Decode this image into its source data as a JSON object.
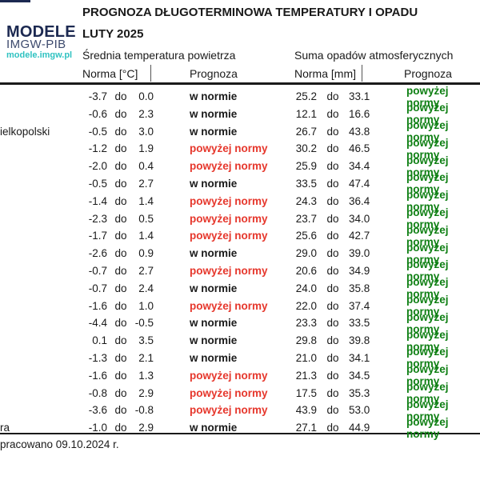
{
  "logo": {
    "name": "MODELE",
    "org": "IMGW-PIB",
    "url": "modele.imgw.pl"
  },
  "header": {
    "title": "PROGNOZA DŁUGOTERMINOWA TEMPERATURY I OPADU",
    "subtitle": "LUTY 2025"
  },
  "columns": {
    "temp_section": "Średnia temperatura powietrza",
    "precip_section": "Suma opadów atmosferycznych",
    "temp_norm": "Norma [°C]",
    "temp_forecast": "Prognoza",
    "precip_norm": "Norma [mm]",
    "precip_forecast": "Prognoza"
  },
  "separator_word": "do",
  "footer": "pracowano 09.10.2024 r.",
  "colors": {
    "above_norm_temp": "#e6372c",
    "above_norm_precip": "#0e7f13",
    "in_norm": "#1a1a1a",
    "logo_navy": "#1c2951",
    "logo_teal": "#2fc2c1"
  },
  "rows": [
    {
      "city": "",
      "t_min": "-3.7",
      "t_max": "0.0",
      "t_forecast": "w normie",
      "t_above": false,
      "p_min": "25.2",
      "p_max": "33.1",
      "p_forecast": "powyżej normy",
      "p_above": true
    },
    {
      "city": "",
      "t_min": "-0.6",
      "t_max": "2.3",
      "t_forecast": "w normie",
      "t_above": false,
      "p_min": "12.1",
      "p_max": "16.6",
      "p_forecast": "powyżej normy",
      "p_above": true
    },
    {
      "city": "ielkopolski",
      "t_min": "-0.5",
      "t_max": "3.0",
      "t_forecast": "w normie",
      "t_above": false,
      "p_min": "26.7",
      "p_max": "43.8",
      "p_forecast": "powyżej normy",
      "p_above": true
    },
    {
      "city": "",
      "t_min": "-1.2",
      "t_max": "1.9",
      "t_forecast": "powyżej normy",
      "t_above": true,
      "p_min": "30.2",
      "p_max": "46.5",
      "p_forecast": "powyżej normy",
      "p_above": true
    },
    {
      "city": "",
      "t_min": "-2.0",
      "t_max": "0.4",
      "t_forecast": "powyżej normy",
      "t_above": true,
      "p_min": "25.9",
      "p_max": "34.4",
      "p_forecast": "powyżej normy",
      "p_above": true
    },
    {
      "city": "",
      "t_min": "-0.5",
      "t_max": "2.7",
      "t_forecast": "w normie",
      "t_above": false,
      "p_min": "33.5",
      "p_max": "47.4",
      "p_forecast": "powyżej normy",
      "p_above": true
    },
    {
      "city": "",
      "t_min": "-1.4",
      "t_max": "1.4",
      "t_forecast": "powyżej normy",
      "t_above": true,
      "p_min": "24.3",
      "p_max": "36.4",
      "p_forecast": "powyżej normy",
      "p_above": true
    },
    {
      "city": "",
      "t_min": "-2.3",
      "t_max": "0.5",
      "t_forecast": "powyżej normy",
      "t_above": true,
      "p_min": "23.7",
      "p_max": "34.0",
      "p_forecast": "powyżej normy",
      "p_above": true
    },
    {
      "city": "",
      "t_min": "-1.7",
      "t_max": "1.4",
      "t_forecast": "powyżej normy",
      "t_above": true,
      "p_min": "25.6",
      "p_max": "42.7",
      "p_forecast": "powyżej normy",
      "p_above": true
    },
    {
      "city": "",
      "t_min": "-2.6",
      "t_max": "0.9",
      "t_forecast": "w normie",
      "t_above": false,
      "p_min": "29.0",
      "p_max": "39.0",
      "p_forecast": "powyżej normy",
      "p_above": true
    },
    {
      "city": "",
      "t_min": "-0.7",
      "t_max": "2.7",
      "t_forecast": "powyżej normy",
      "t_above": true,
      "p_min": "20.6",
      "p_max": "34.9",
      "p_forecast": "powyżej normy",
      "p_above": true
    },
    {
      "city": "",
      "t_min": "-0.7",
      "t_max": "2.4",
      "t_forecast": "w normie",
      "t_above": false,
      "p_min": "24.0",
      "p_max": "35.8",
      "p_forecast": "powyżej normy",
      "p_above": true
    },
    {
      "city": "",
      "t_min": "-1.6",
      "t_max": "1.0",
      "t_forecast": "powyżej normy",
      "t_above": true,
      "p_min": "22.0",
      "p_max": "37.4",
      "p_forecast": "powyżej normy",
      "p_above": true
    },
    {
      "city": "",
      "t_min": "-4.4",
      "t_max": "-0.5",
      "t_forecast": "w normie",
      "t_above": false,
      "p_min": "23.3",
      "p_max": "33.5",
      "p_forecast": "powyżej normy",
      "p_above": true
    },
    {
      "city": "",
      "t_min": "0.1",
      "t_max": "3.5",
      "t_forecast": "w normie",
      "t_above": false,
      "p_min": "29.8",
      "p_max": "39.8",
      "p_forecast": "powyżej normy",
      "p_above": true
    },
    {
      "city": "",
      "t_min": "-1.3",
      "t_max": "2.1",
      "t_forecast": "w normie",
      "t_above": false,
      "p_min": "21.0",
      "p_max": "34.1",
      "p_forecast": "powyżej normy",
      "p_above": true
    },
    {
      "city": "",
      "t_min": "-1.6",
      "t_max": "1.3",
      "t_forecast": "powyżej normy",
      "t_above": true,
      "p_min": "21.3",
      "p_max": "34.5",
      "p_forecast": "powyżej normy",
      "p_above": true
    },
    {
      "city": "",
      "t_min": "-0.8",
      "t_max": "2.9",
      "t_forecast": "powyżej normy",
      "t_above": true,
      "p_min": "17.5",
      "p_max": "35.3",
      "p_forecast": "powyżej normy",
      "p_above": true
    },
    {
      "city": "",
      "t_min": "-3.6",
      "t_max": "-0.8",
      "t_forecast": "powyżej normy",
      "t_above": true,
      "p_min": "43.9",
      "p_max": "53.0",
      "p_forecast": "powyżej normy",
      "p_above": true
    },
    {
      "city": "ra",
      "t_min": "-1.0",
      "t_max": "2.9",
      "t_forecast": "w normie",
      "t_above": false,
      "p_min": "27.1",
      "p_max": "44.9",
      "p_forecast": "powyżej normy",
      "p_above": true
    }
  ]
}
